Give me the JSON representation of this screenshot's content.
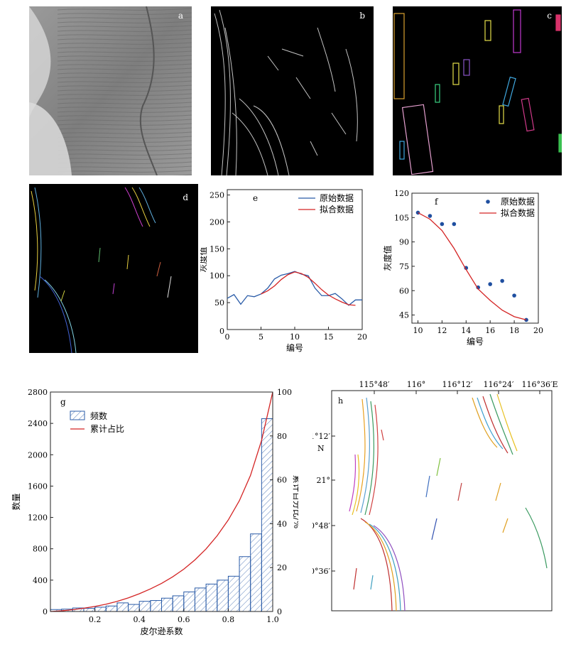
{
  "panel_labels": {
    "a": "a",
    "b": "b",
    "c": "c",
    "d": "d",
    "e": "e",
    "f": "f",
    "g": "g",
    "h": "h"
  },
  "chart_data": [
    {
      "panel": "e",
      "type": "line",
      "xlabel": "编号",
      "ylabel": "灰度值",
      "xlim": [
        0,
        20
      ],
      "ylim": [
        0,
        260
      ],
      "xticks": [
        0,
        5,
        10,
        15,
        20
      ],
      "yticks": [
        50,
        100,
        150,
        200,
        250
      ],
      "y0_label": "0",
      "legend_position": "top-right",
      "series": [
        {
          "name": "原始数据",
          "color": "#2b5ca8",
          "x": [
            0,
            1,
            2,
            3,
            4,
            5,
            6,
            7,
            8,
            9,
            10,
            11,
            12,
            13,
            14,
            15,
            16,
            17,
            18,
            19,
            20
          ],
          "y": [
            58,
            65,
            47,
            63,
            61,
            66,
            77,
            94,
            101,
            104,
            108,
            103,
            100,
            77,
            63,
            63,
            67,
            57,
            45,
            55,
            55
          ]
        },
        {
          "name": "拟合数据",
          "color": "#d42424",
          "x": [
            5,
            6,
            7,
            8,
            9,
            10,
            11,
            12,
            13,
            14,
            15,
            16,
            17,
            18,
            19
          ],
          "y": [
            66,
            72,
            81,
            93,
            102,
            107,
            104,
            97,
            86,
            74,
            64,
            57,
            51,
            46,
            45
          ]
        }
      ]
    },
    {
      "panel": "f",
      "type": "scatter",
      "xlabel": "编号",
      "ylabel": "灰度值",
      "xlim": [
        9.5,
        20
      ],
      "ylim": [
        40,
        120
      ],
      "xticks": [
        10,
        12,
        14,
        16,
        18,
        20
      ],
      "yticks": [
        45,
        60,
        75,
        90,
        105,
        120
      ],
      "legend_position": "top-right",
      "series": [
        {
          "name": "原始数据",
          "color": "#1f4fa0",
          "x": [
            10,
            11,
            12,
            13,
            14,
            15,
            16,
            17,
            18,
            19
          ],
          "y": [
            108,
            106,
            101,
            101,
            74,
            62,
            64,
            66,
            57,
            42
          ]
        },
        {
          "name": "拟合数据",
          "color": "#d42424",
          "x": [
            10,
            11,
            12,
            13,
            14,
            15,
            16,
            17,
            18,
            19
          ],
          "y": [
            108,
            104,
            97,
            86,
            73,
            61,
            54,
            48,
            44,
            42
          ]
        }
      ]
    },
    {
      "panel": "g",
      "type": "bar",
      "xlabel": "皮尔逊系数",
      "ylabel": "数量",
      "y2label": "累计百分比/%",
      "xlim": [
        0,
        1
      ],
      "ylim": [
        0,
        2800
      ],
      "y2lim": [
        0,
        100
      ],
      "xticks": [
        0.2,
        0.4,
        0.6,
        0.8,
        1.0
      ],
      "yticks": [
        0,
        400,
        800,
        1200,
        1600,
        2000,
        2400,
        2800
      ],
      "y2ticks": [
        0,
        20,
        40,
        60,
        80,
        100
      ],
      "legend_position": "top-left",
      "bin_width": 0.05,
      "series": [
        {
          "name": "频数",
          "color": "#2b5ca8",
          "bin_starts": [
            0,
            0.05,
            0.1,
            0.15,
            0.2,
            0.25,
            0.3,
            0.35,
            0.4,
            0.45,
            0.5,
            0.55,
            0.6,
            0.65,
            0.7,
            0.75,
            0.8,
            0.85,
            0.9,
            0.95
          ],
          "values": [
            25,
            30,
            45,
            40,
            55,
            70,
            110,
            90,
            130,
            140,
            170,
            200,
            250,
            300,
            350,
            400,
            450,
            700,
            990,
            2460
          ]
        },
        {
          "name": "累计占比",
          "color": "#d42424",
          "axis": "right",
          "x": [
            0,
            0.05,
            0.1,
            0.15,
            0.2,
            0.25,
            0.3,
            0.35,
            0.4,
            0.45,
            0.5,
            0.55,
            0.6,
            0.65,
            0.7,
            0.75,
            0.8,
            0.85,
            0.9,
            0.95,
            1.0
          ],
          "y": [
            0,
            0.3,
            0.8,
            1.5,
            2.3,
            3.3,
            4.6,
            6.2,
            8.1,
            10.3,
            12.8,
            15.8,
            19.3,
            23.5,
            28.5,
            34.5,
            41.7,
            50.5,
            62,
            78,
            100
          ]
        }
      ]
    }
  ],
  "map_h": {
    "x_ticks": [
      "115°48′",
      "116°",
      "116°12′",
      "116°24′",
      "116°36′E"
    ],
    "y_ticks": [
      "21°12′",
      "21°",
      "20°48′",
      "20°36′"
    ],
    "north_label": "N"
  }
}
